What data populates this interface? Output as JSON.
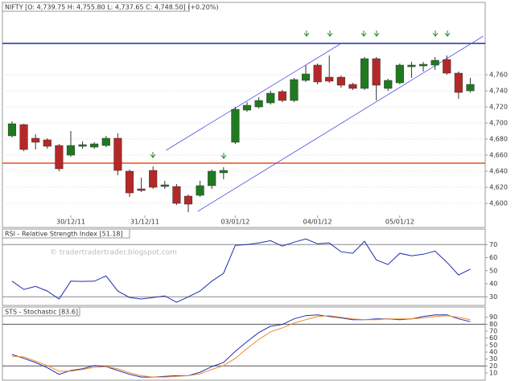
{
  "chart_data": [
    {
      "type": "candlestick",
      "title": "NIFTY [O: 4,739.75 H: 4,755.80 L: 4,737.65 C: 4,748.50] (+0.20%)",
      "xlim": [
        -0.82,
        40.27
      ],
      "xticks": [
        {
          "value": 5,
          "label": "30/12/11"
        },
        {
          "value": 11.3,
          "label": "31/12/11"
        },
        {
          "value": 19,
          "label": "03/01/12"
        },
        {
          "value": 26,
          "label": "04/01/12"
        },
        {
          "value": 33,
          "label": "05/01/12"
        }
      ],
      "ylim": [
        4585,
        4850
      ],
      "yticks": [
        {
          "value": 4600,
          "label": "4,600"
        },
        {
          "value": 4620,
          "label": "4,620"
        },
        {
          "value": 4640,
          "label": "4,640"
        },
        {
          "value": 4660,
          "label": "4,660"
        },
        {
          "value": 4680,
          "label": "4,680"
        },
        {
          "value": 4700,
          "label": "4,700"
        },
        {
          "value": 4720,
          "label": "4,720"
        },
        {
          "value": 4740,
          "label": "4,740"
        },
        {
          "value": 4760,
          "label": "4,760"
        }
      ],
      "grid": true,
      "up_color": "#1f7a1f",
      "down_color": "#b52828",
      "open": [
        4684,
        4698,
        4681,
        4679,
        4672,
        4660,
        4671,
        4670,
        4672,
        4681,
        4640,
        4618,
        4641,
        4621,
        4621,
        4609,
        4610,
        4622,
        4638,
        4676,
        4716,
        4720,
        4725,
        4739,
        4728,
        4753,
        4772,
        4757,
        4757,
        4748,
        4743,
        4780,
        4743,
        4750,
        4770,
        4771,
        4772,
        4779,
        4762,
        4740
      ],
      "high": [
        4702,
        4699,
        4686,
        4681,
        4674,
        4690,
        4677,
        4676,
        4684,
        4687,
        4642,
        4632,
        4646,
        4628,
        4624,
        4611,
        4628,
        4642,
        4645,
        4720,
        4726,
        4732,
        4740,
        4741,
        4756,
        4772,
        4774,
        4784,
        4759,
        4750,
        4782,
        4782,
        4755,
        4774,
        4776,
        4776,
        4782,
        4784,
        4764,
        4756
      ],
      "low": [
        4682,
        4665,
        4667,
        4668,
        4640,
        4658,
        4668,
        4668,
        4670,
        4635,
        4608,
        4614,
        4618,
        4618,
        4598,
        4589,
        4608,
        4618,
        4630,
        4674,
        4714,
        4718,
        4723,
        4726,
        4726,
        4751,
        4748,
        4750,
        4744,
        4741,
        4741,
        4728,
        4740,
        4748,
        4756,
        4764,
        4766,
        4760,
        4730,
        4738
      ],
      "close": [
        4699,
        4667,
        4676,
        4671,
        4643,
        4672,
        4673,
        4674,
        4681,
        4641,
        4613,
        4616,
        4620,
        4623,
        4600,
        4599,
        4622,
        4640,
        4641,
        4717,
        4722,
        4728,
        4737,
        4728,
        4754,
        4761,
        4751,
        4752,
        4747,
        4743,
        4780,
        4747,
        4753,
        4772,
        4772,
        4773,
        4778,
        4762,
        4738,
        4748
      ],
      "reference_lines": [
        {
          "value": 4799,
          "color": "#1c2fa8"
        },
        {
          "value": 4650,
          "color": "#e8501a"
        }
      ],
      "trendlines": [
        {
          "x": [
            13.1,
            27.9
          ],
          "y": [
            4666,
            4798
          ],
          "color": "#4a55e0"
        },
        {
          "x": [
            15.8,
            40.1
          ],
          "y": [
            4590,
            4808
          ],
          "color": "#4a55e0"
        }
      ]
    },
    {
      "type": "line",
      "title": "RSI - Relative Strength Index [51.18]",
      "annotation": "© tradertradertrader.blogspot.com",
      "xlim": [
        -0.82,
        40.27
      ],
      "ylim": [
        24,
        80
      ],
      "yticks": [
        30,
        40,
        50,
        60,
        70
      ],
      "reference_lines": [
        {
          "value": 70,
          "color": "#888888"
        },
        {
          "value": 30,
          "color": "#888888"
        }
      ],
      "series": [
        {
          "color": "#1f2fb0",
          "values": [
            42,
            35.6,
            38,
            34.4,
            28.3,
            42,
            41.8,
            42,
            46,
            34.4,
            29.5,
            28.3,
            29.5,
            30.7,
            25.8,
            30,
            34.4,
            42,
            48,
            69.4,
            70,
            71.2,
            73,
            68.8,
            71.8,
            74.3,
            70.6,
            71.2,
            64.5,
            63.3,
            72.5,
            58.3,
            54.7,
            63.3,
            61.4,
            62.6,
            65,
            56.5,
            46.7,
            51.18
          ]
        }
      ]
    },
    {
      "type": "line",
      "title": "STS - Stochastic [83.6]",
      "xlim": [
        -0.82,
        40.27
      ],
      "ylim": [
        0,
        100
      ],
      "yticks": [
        10,
        20,
        30,
        40,
        50,
        60,
        70,
        80,
        90
      ],
      "reference_lines": [
        {
          "value": 80,
          "color": "#555555"
        },
        {
          "value": 20,
          "color": "#555555"
        }
      ],
      "series": [
        {
          "color": "#1f2fb0",
          "values": [
            36.5,
            31,
            25,
            17.6,
            8,
            13.5,
            16,
            20.5,
            19,
            13.5,
            8,
            4,
            4,
            5,
            6,
            6,
            11,
            19,
            25,
            41,
            55,
            68,
            77,
            79.6,
            87.7,
            92.3,
            93.4,
            91,
            89,
            86.5,
            86.5,
            87.7,
            87.7,
            86.5,
            87.7,
            91,
            93.4,
            93.4,
            87.7,
            83.6
          ]
        },
        {
          "color": "#f08a2a",
          "values": [
            34,
            33,
            27,
            20.5,
            12.5,
            12.5,
            15,
            18,
            19,
            16,
            10,
            6,
            4,
            4,
            5,
            6,
            8.5,
            15,
            20.5,
            31,
            45,
            58,
            69,
            74.7,
            81.6,
            86.5,
            91,
            92.3,
            90,
            87.7,
            86.5,
            86.5,
            87.7,
            87.7,
            87.7,
            89,
            91,
            92.3,
            90,
            86.5
          ]
        }
      ]
    }
  ]
}
